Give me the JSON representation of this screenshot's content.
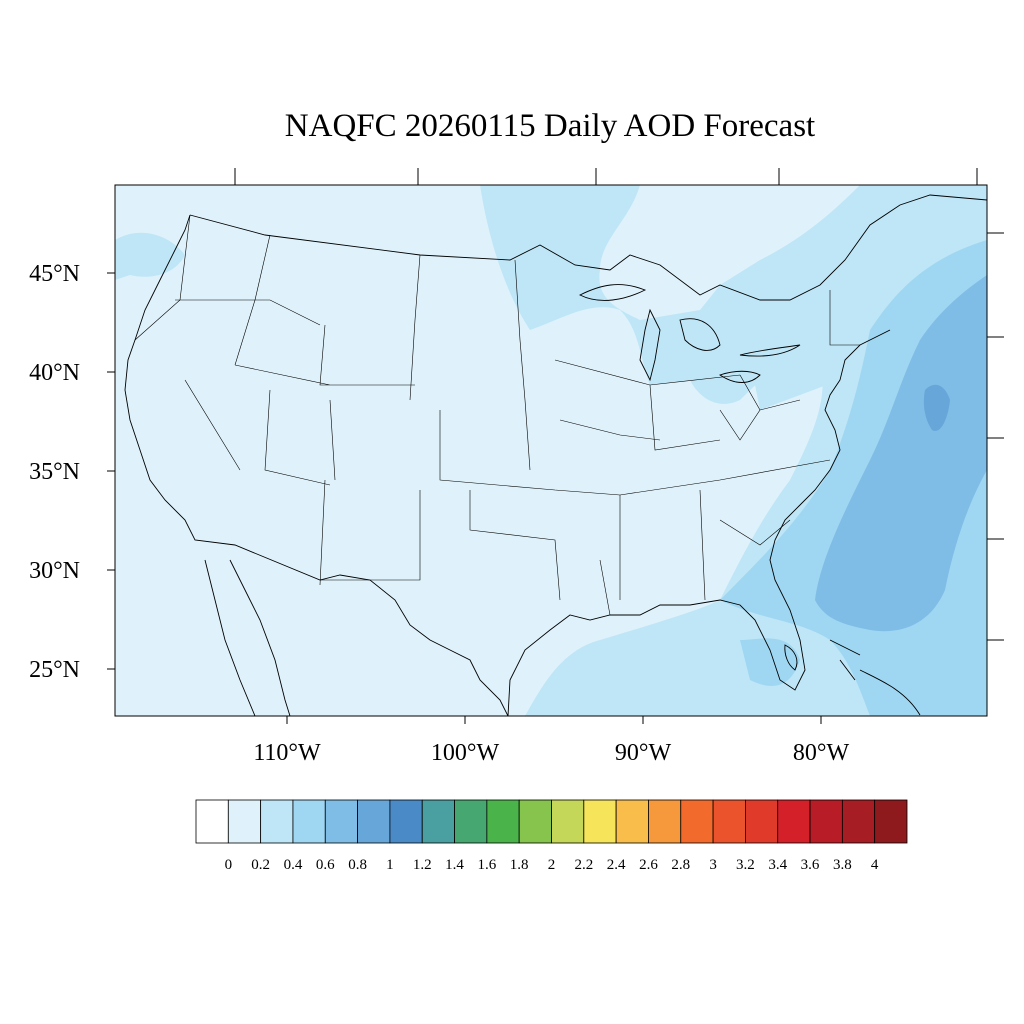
{
  "title": "NAQFC 20260115 Daily AOD Forecast",
  "map": {
    "projection": "lambert-conformal",
    "region": "Contiguous United States",
    "lat_labels": [
      "45°N",
      "40°N",
      "35°N",
      "30°N",
      "25°N"
    ],
    "lon_labels": [
      "110°W",
      "100°W",
      "90°W",
      "80°W"
    ],
    "field_description": "AOD mostly 0.2 over land; 0.2–0.4 over Great Lakes, Gulf and Atlantic; 0.6–0.8 band offshore of East Coast",
    "regions": [
      {
        "name": "continental-us",
        "aod_bin": "0.2-0.4 lower"
      },
      {
        "name": "great-lakes",
        "aod_bin": "0.2-0.4"
      },
      {
        "name": "gulf-of-mexico",
        "aod_bin": "0.2-0.4"
      },
      {
        "name": "atlantic-near-coast",
        "aod_bin": "0.4-0.6"
      },
      {
        "name": "atlantic-offshore-band",
        "aod_bin": "0.6-0.8"
      }
    ]
  },
  "colorbar": {
    "levels": [
      "0",
      "0.2",
      "0.4",
      "0.6",
      "0.8",
      "1",
      "1.2",
      "1.4",
      "1.6",
      "1.8",
      "2",
      "2.2",
      "2.4",
      "2.6",
      "2.8",
      "3",
      "3.2",
      "3.4",
      "3.6",
      "3.8",
      "4"
    ],
    "colors": [
      "#ffffff",
      "#dff2fb",
      "#bfe6f7",
      "#9fd7f2",
      "#7fbde6",
      "#67a6d9",
      "#4a8ac7",
      "#4aa0a0",
      "#46a870",
      "#4ab44a",
      "#86c44e",
      "#c4d758",
      "#f6e55a",
      "#f8bd4b",
      "#f6983c",
      "#f26b2c",
      "#ea532c",
      "#e03a2a",
      "#d42029",
      "#b81c26",
      "#a61d24",
      "#8f1a1d"
    ]
  }
}
